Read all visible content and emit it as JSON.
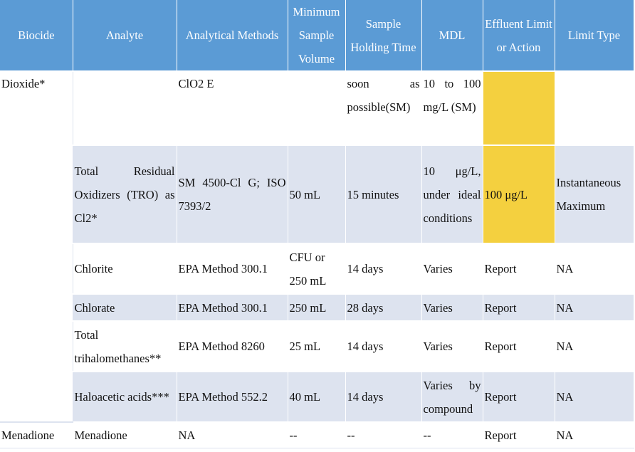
{
  "headers": {
    "biocide": "Biocide",
    "analyte": "Analyte",
    "methods": "Analytical Methods",
    "volume": "Minimum Sample Volume",
    "holding": "Sample Holding Time",
    "mdl": "MDL",
    "limit": "Effluent Limit or Action",
    "type": "Limit Type"
  },
  "rows": {
    "r0": {
      "biocide": "Dioxide*",
      "analyte": "",
      "method": "ClO2 E",
      "volume": "",
      "holding": "soon as possible(SM)",
      "mdl": "10 to 100 mg/L (SM)",
      "limit": "",
      "type": ""
    },
    "r1": {
      "analyte": "Total Residual Oxidizers (TRO) as Cl2*",
      "method": "SM 4500-Cl G; ISO 7393/2",
      "volume": "50 mL",
      "holding": "15 minutes",
      "mdl": "10 μg/L, under ideal conditions",
      "limit": "100 μg/L",
      "type": "Instantaneous Maximum"
    },
    "r2": {
      "analyte": "Chlorite",
      "method": "EPA Method 300.1",
      "volume": "CFU or 250 mL",
      "holding": "14 days",
      "mdl": "Varies",
      "limit": "Report",
      "type": "NA"
    },
    "r3": {
      "analyte": "Chlorate",
      "method": "EPA Method 300.1",
      "volume": "250 mL",
      "holding": "28 days",
      "mdl": "Varies",
      "limit": "Report",
      "type": "NA"
    },
    "r4": {
      "analyte": "Total trihalomethanes**",
      "method": "EPA Method 8260",
      "volume": "25 mL",
      "holding": "14 days",
      "mdl": "Varies",
      "limit": "Report",
      "type": "NA"
    },
    "r5": {
      "analyte": "Haloacetic acids***",
      "method": "EPA Method 552.2",
      "volume": "40 mL",
      "holding": "14 days",
      "mdl": "Varies by compound",
      "limit": "Report",
      "type": "NA"
    },
    "r6": {
      "biocide": "Menadione",
      "analyte": "Menadione",
      "method": "NA",
      "volume": "--",
      "holding": "--",
      "mdl": "--",
      "limit": "Report",
      "type": "NA"
    }
  },
  "colors": {
    "header_bg": "#5b9bd5",
    "band_bg": "#dde3ef",
    "highlight": "#f4d03f"
  }
}
